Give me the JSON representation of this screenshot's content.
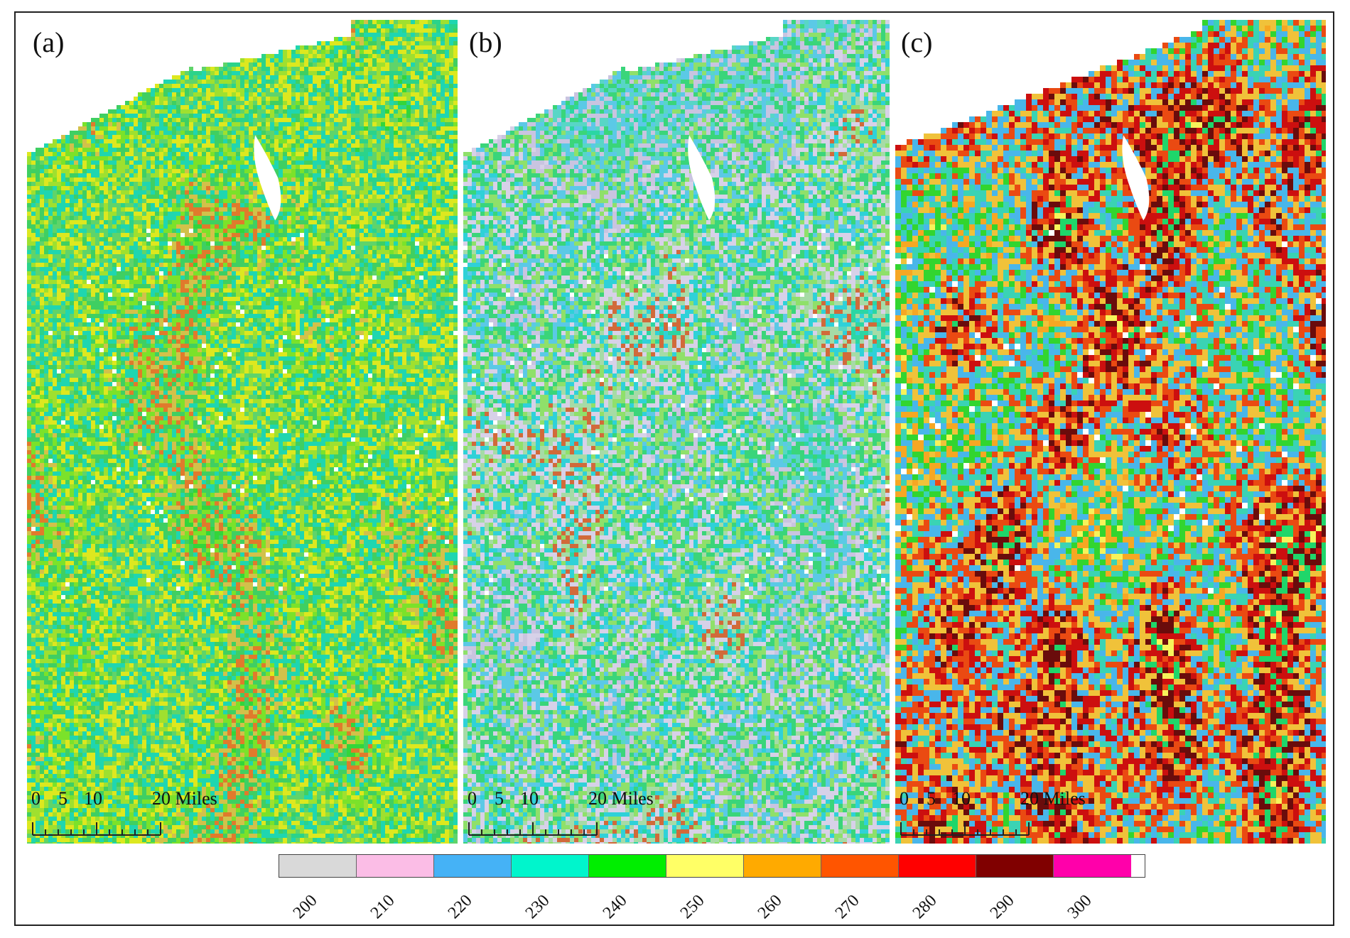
{
  "panels": [
    {
      "label": "(a)",
      "palette": [
        "#33d63a",
        "#2bd38a",
        "#5fd46a",
        "#9fe02f",
        "#dde81f",
        "#1fd6b0",
        "#3fcf62",
        "#7be22a",
        "#d2c14a",
        "#e07a2c"
      ]
    },
    {
      "label": "(b)",
      "palette": [
        "#2bd6a4",
        "#58d6c6",
        "#c9c4e0",
        "#5bc9e6",
        "#3ad57a",
        "#8fe06a",
        "#d7d1e8",
        "#2fd1d8",
        "#a6dba6",
        "#d16a3a"
      ]
    },
    {
      "label": "(c)",
      "palette": [
        "#f7f35a",
        "#f6a723",
        "#32d52f",
        "#3ad3b4",
        "#49b6ea",
        "#f0c23a",
        "#ea4a12",
        "#cc0f0f",
        "#6a0c0c",
        "#1fd66a"
      ]
    }
  ],
  "scalebar": {
    "labels": [
      "0",
      "5",
      "10",
      "20 Miles"
    ]
  },
  "legend": {
    "items": [
      {
        "value": "200",
        "color": "#d9d9d9"
      },
      {
        "value": "210",
        "color": "#fbbde6"
      },
      {
        "value": "220",
        "color": "#45b2f6"
      },
      {
        "value": "230",
        "color": "#00f5cc"
      },
      {
        "value": "240",
        "color": "#00ee00"
      },
      {
        "value": "250",
        "color": "#ffff66"
      },
      {
        "value": "260",
        "color": "#ffaa00"
      },
      {
        "value": "270",
        "color": "#ff5500"
      },
      {
        "value": "280",
        "color": "#ff0000"
      },
      {
        "value": "290",
        "color": "#800000"
      },
      {
        "value": "300",
        "color": "#ff00aa"
      }
    ]
  }
}
